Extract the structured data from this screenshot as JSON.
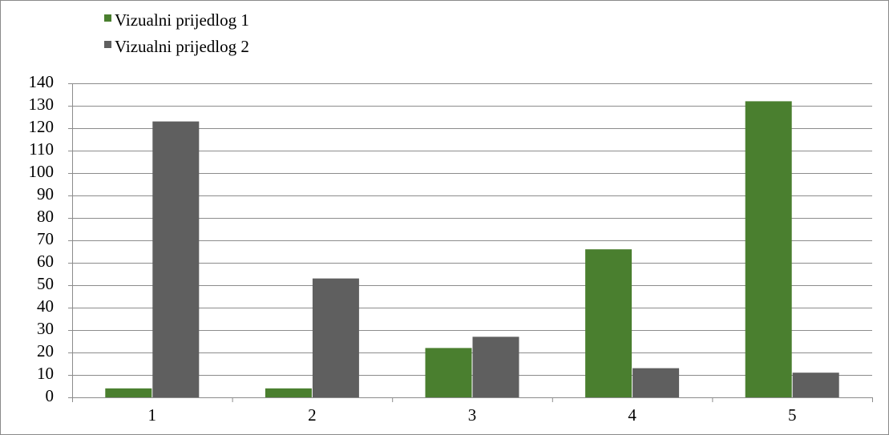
{
  "chart_data": {
    "type": "bar",
    "title": "",
    "xlabel": "",
    "ylabel": "",
    "categories": [
      "1",
      "2",
      "3",
      "4",
      "5"
    ],
    "series": [
      {
        "name": "Vizualni prijedlog 1",
        "color": "#4a7f2f",
        "values": [
          4,
          4,
          22,
          66,
          132
        ]
      },
      {
        "name": "Vizualni prijedlog 2",
        "color": "#5f5f5f",
        "values": [
          123,
          53,
          27,
          13,
          11
        ]
      }
    ],
    "ylim": [
      0,
      140
    ],
    "yticks": [
      0,
      10,
      20,
      30,
      40,
      50,
      60,
      70,
      80,
      90,
      100,
      110,
      120,
      130,
      140
    ],
    "grid": true,
    "legend_position": "top-left"
  }
}
